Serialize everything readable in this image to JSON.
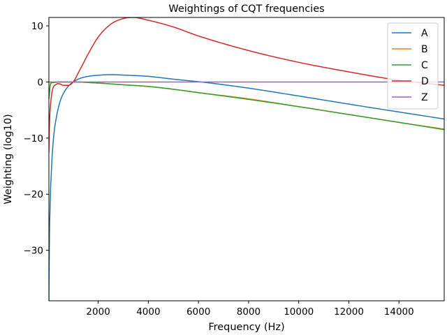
{
  "chart_data": {
    "type": "line",
    "title": "Weightings of CQT frequencies",
    "xlabel": "Frequency (Hz)",
    "ylabel": "Weighting (log10)",
    "xlim": [
      32.7,
      15804
    ],
    "ylim": [
      -39.0,
      11.5
    ],
    "xticks": [
      2000,
      4000,
      6000,
      8000,
      10000,
      12000,
      14000
    ],
    "xtick_labels": [
      "2000",
      "4000",
      "6000",
      "8000",
      "10000",
      "12000",
      "14000"
    ],
    "yticks": [
      10,
      0,
      -10,
      -20,
      -30
    ],
    "ytick_labels": [
      "10",
      "0",
      "−10",
      "−20",
      "−30"
    ],
    "grid": false,
    "legend_position": "upper right",
    "series": [
      {
        "name": "A",
        "color": "#1f77b4",
        "x": [
          32.7,
          40,
          50,
          60,
          80,
          100,
          130,
          160,
          200,
          250,
          320,
          400,
          500,
          630,
          800,
          1000,
          1250,
          1600,
          2000,
          2500,
          3150,
          4000,
          5000,
          6300,
          8000,
          10000,
          12500,
          15804
        ],
        "y": [
          -39.0,
          -34.6,
          -30.2,
          -26.2,
          -22.5,
          -19.1,
          -16.1,
          -13.4,
          -10.9,
          -8.6,
          -6.6,
          -4.8,
          -3.2,
          -1.9,
          -0.8,
          0.0,
          0.6,
          1.0,
          1.2,
          1.3,
          1.2,
          1.0,
          0.5,
          -0.1,
          -1.1,
          -2.5,
          -4.3,
          -6.6
        ]
      },
      {
        "name": "B",
        "color": "#ff7f0e",
        "x": [
          32.7,
          100,
          200,
          500,
          1000,
          2000,
          3000,
          4000,
          5000,
          6000,
          8000,
          10000,
          12000,
          14000,
          15804
        ],
        "y": [
          -3.0,
          -0.3,
          -0.1,
          0.0,
          0.0,
          -0.2,
          -0.5,
          -0.8,
          -1.3,
          -1.9,
          -3.0,
          -4.4,
          -5.8,
          -7.2,
          -8.4
        ]
      },
      {
        "name": "C",
        "color": "#2ca02c",
        "x": [
          32.7,
          100,
          200,
          500,
          1000,
          2000,
          3000,
          4000,
          5000,
          6000,
          8000,
          10000,
          12000,
          14000,
          15804
        ],
        "y": [
          -3.0,
          -0.3,
          -0.1,
          0.0,
          0.0,
          -0.2,
          -0.5,
          -0.8,
          -1.3,
          -1.9,
          -3.1,
          -4.4,
          -5.8,
          -7.2,
          -8.5
        ]
      },
      {
        "name": "D",
        "color": "#d62728",
        "x": [
          32.7,
          60,
          100,
          150,
          200,
          300,
          400,
          500,
          600,
          800,
          1000,
          1250,
          1600,
          2000,
          2500,
          3000,
          3400,
          4000,
          5000,
          6000,
          8000,
          10000,
          12000,
          14000,
          15804
        ],
        "y": [
          -12.5,
          -7.0,
          -4.0,
          -2.0,
          -1.0,
          -0.5,
          -0.3,
          -0.4,
          -0.6,
          -0.6,
          0.0,
          2.0,
          5.0,
          8.0,
          10.3,
          11.3,
          11.5,
          11.0,
          9.8,
          8.2,
          5.6,
          3.5,
          1.8,
          0.3,
          -0.6
        ]
      },
      {
        "name": "Z",
        "color": "#9467bd",
        "x": [
          32.7,
          15804
        ],
        "y": [
          0.0,
          0.0
        ]
      }
    ]
  }
}
